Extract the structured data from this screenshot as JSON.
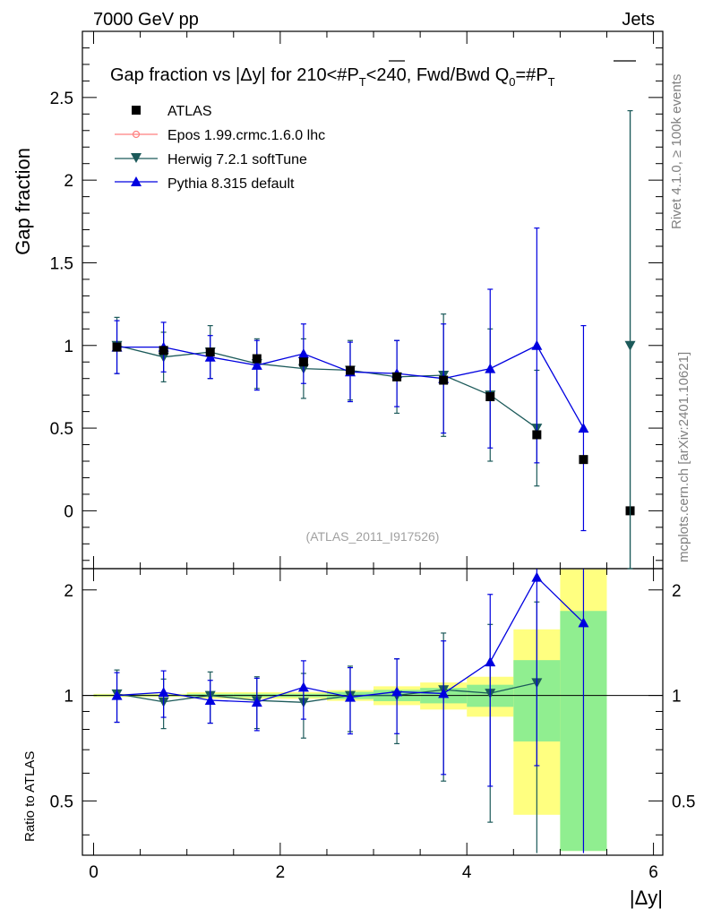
{
  "header": {
    "left": "7000 GeV pp",
    "right": "Jets"
  },
  "side_labels": {
    "rivet": "Rivet 4.1.0, ≥ 100k events",
    "mcplots": "mcplots.cern.ch [arXiv:2401.10621]"
  },
  "chart_data": {
    "type": "scatter",
    "title": "Gap fraction vs |Δy| for 210<#P̅T<240, Fwd/Bwd Q0=#P̅T",
    "title_parts": {
      "main": "Gap fraction vs |Δy| for 210<#",
      "p": "P",
      "t": "T",
      "mid": "<240, Fwd/Bwd Q",
      "zero": "0",
      "eq": "=#"
    },
    "xlabel": "|Δy|",
    "ylabel": "Gap fraction",
    "ratio_ylabel": "Ratio to ATLAS",
    "watermark": "(ATLAS_2011_I917526)",
    "xlim": [
      -0.12,
      6.1
    ],
    "ylim": [
      -0.35,
      2.9
    ],
    "ratio_ylim": [
      0.35,
      2.3
    ],
    "x_ticks": [
      "0",
      "2",
      "4",
      "6"
    ],
    "y_ticks": [
      "0",
      "0.5",
      "1",
      "1.5",
      "2",
      "2.5"
    ],
    "ratio_ticks": [
      "0.5",
      "1",
      "2"
    ],
    "ratio_tick_values": [
      0.5,
      1,
      2
    ],
    "x": [
      0.25,
      0.75,
      1.25,
      1.75,
      2.25,
      2.75,
      3.25,
      3.75,
      4.25,
      4.75,
      5.25,
      5.75
    ],
    "x_edges": [
      0,
      0.5,
      1,
      1.5,
      2,
      2.5,
      3,
      3.5,
      4,
      4.5,
      5,
      5.5,
      6
    ],
    "series": [
      {
        "name": "ATLAS",
        "color": "#000000",
        "marker": "square",
        "values": [
          0.99,
          0.97,
          0.96,
          0.92,
          0.9,
          0.85,
          0.81,
          0.79,
          0.69,
          0.46,
          0.31,
          0.0
        ],
        "band_inner": [
          0.005,
          0.005,
          0.01,
          0.01,
          0.01,
          0.02,
          0.03,
          0.04,
          0.05,
          0.12,
          0.23,
          0.0
        ],
        "band_outer": [
          0.01,
          0.01,
          0.02,
          0.02,
          0.02,
          0.03,
          0.05,
          0.07,
          0.09,
          0.25,
          0.58,
          0.0
        ]
      },
      {
        "name": "Epos 1.99.crmc.1.6.0 lhc",
        "color": "#ff7f7f",
        "marker": "cross",
        "values": []
      },
      {
        "name": "Herwig 7.2.1 softTune",
        "color": "#1c5a5a",
        "marker": "triangle-down",
        "values": [
          1.0,
          0.93,
          0.96,
          0.89,
          0.86,
          0.85,
          0.81,
          0.82,
          0.7,
          0.5,
          null,
          1.0
        ],
        "errors": [
          0.17,
          0.15,
          0.16,
          0.15,
          0.18,
          0.18,
          0.22,
          0.37,
          0.4,
          0.35,
          null,
          1.42
        ]
      },
      {
        "name": "Pythia 8.315 default",
        "color": "#0000e0",
        "marker": "triangle-up",
        "values": [
          0.99,
          0.99,
          0.93,
          0.88,
          0.95,
          0.84,
          0.83,
          0.8,
          0.86,
          1.0,
          0.5,
          null
        ],
        "errors": [
          0.16,
          0.15,
          0.13,
          0.15,
          0.18,
          0.18,
          0.2,
          0.33,
          0.48,
          0.71,
          0.62,
          null
        ]
      }
    ]
  }
}
